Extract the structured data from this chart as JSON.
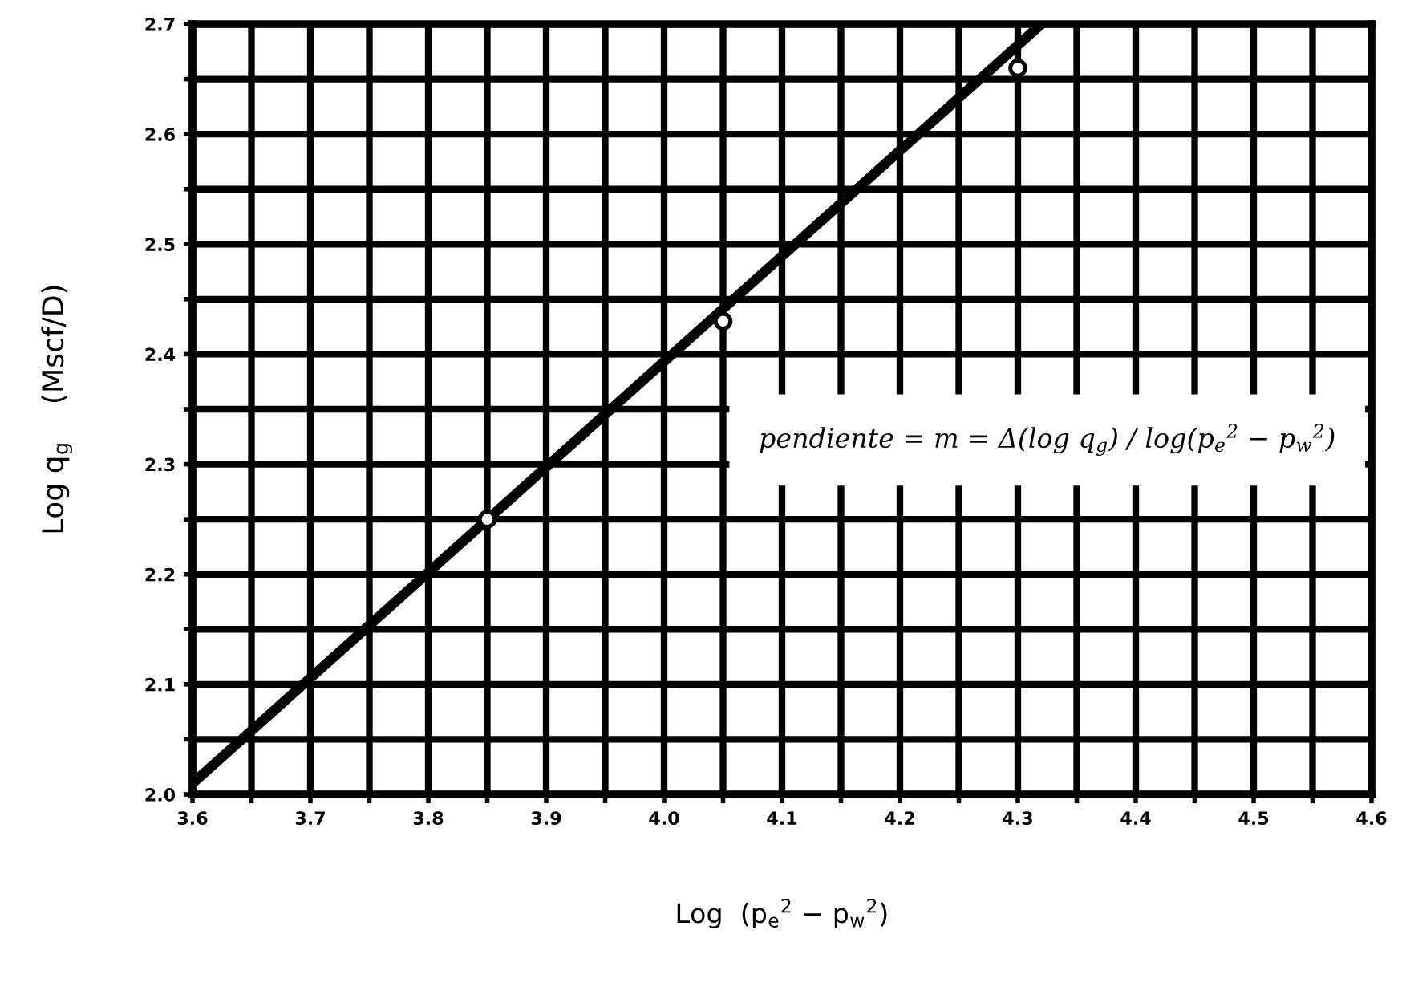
{
  "chart_data": {
    "type": "line",
    "xlabel": "Log  (p$_{e}$$^{2}$ − p$_{w}$$^{2}$)",
    "ylabel": "Log q$_{g}$    (Mscf/D)",
    "annotations": [
      "pendiente = m = Δ(log q$_{g}$) / log(p$_{e}$$^{2}$ − p$_{w}$$^{2}$)"
    ],
    "series": [
      {
        "type": "line",
        "color": "#000000",
        "x": [
          3.6,
          4.32
        ],
        "values": [
          2.01,
          2.7
        ]
      },
      {
        "type": "scatter",
        "color": "#000000",
        "marker": "circle",
        "x": [
          3.85,
          4.05,
          4.3
        ],
        "values": [
          2.25,
          2.43,
          2.66
        ]
      }
    ],
    "xlim": [
      3.6,
      4.6
    ],
    "ylim": [
      2.0,
      2.7
    ],
    "xticks": [
      3.6,
      {
        "value": 3.65,
        "label": null
      },
      3.7,
      {
        "value": 3.75,
        "label": null
      },
      3.8,
      {
        "value": 3.85,
        "label": null
      },
      3.9,
      {
        "value": 3.95,
        "label": null
      },
      {
        "value": 4.0,
        "label": "4.0"
      },
      {
        "value": 4.05,
        "label": null
      },
      4.1,
      {
        "value": 4.15,
        "label": null
      },
      4.2,
      {
        "value": 4.25,
        "label": null
      },
      4.3,
      {
        "value": 4.35,
        "label": null
      },
      4.4,
      {
        "value": 4.45,
        "label": null
      },
      4.5,
      {
        "value": 4.55,
        "label": null
      },
      4.6
    ],
    "yticks": [
      {
        "value": 2.0,
        "label": "2.0"
      },
      {
        "value": 2.05,
        "label": null
      },
      2.1,
      {
        "value": 2.15,
        "label": null
      },
      2.2,
      {
        "value": 2.25,
        "label": null
      },
      2.3,
      {
        "value": 2.35,
        "label": null
      },
      2.4,
      {
        "value": 2.45,
        "label": null
      },
      2.5,
      {
        "value": 2.55,
        "label": null
      },
      2.6,
      {
        "value": 2.65,
        "label": null
      },
      2.7
    ],
    "grid": true
  }
}
